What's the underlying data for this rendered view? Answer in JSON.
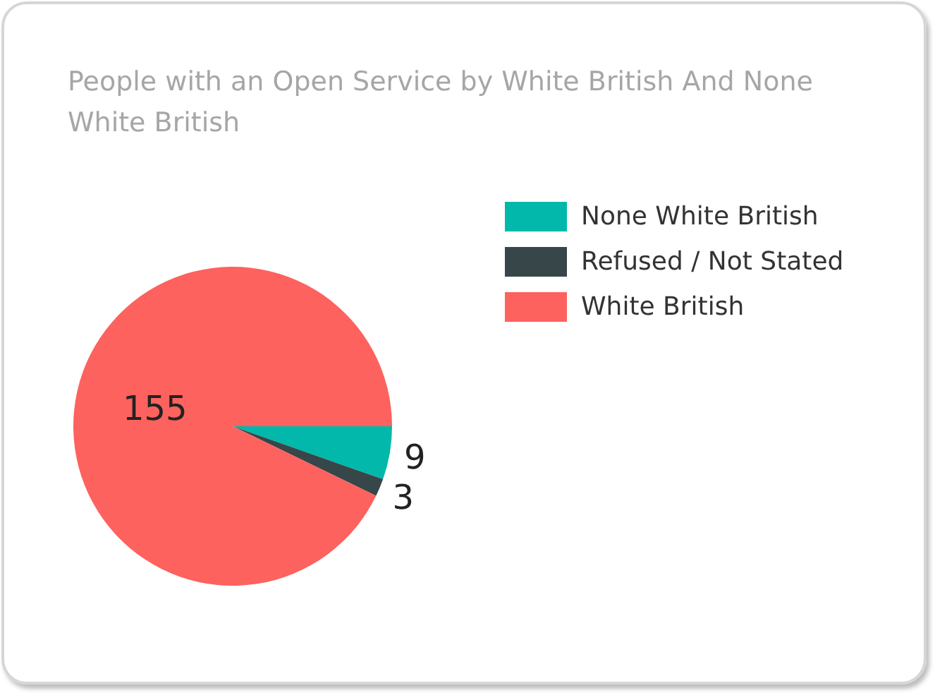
{
  "chart_data": {
    "type": "pie",
    "title": "People with an Open Service by White British And None White British",
    "categories": [
      "None White British",
      "Refused / Not Stated",
      "White British"
    ],
    "values": [
      9,
      3,
      155
    ],
    "colors": [
      "#01b8aa",
      "#374649",
      "#fd625e"
    ],
    "data_labels": true,
    "legend": "top right"
  }
}
